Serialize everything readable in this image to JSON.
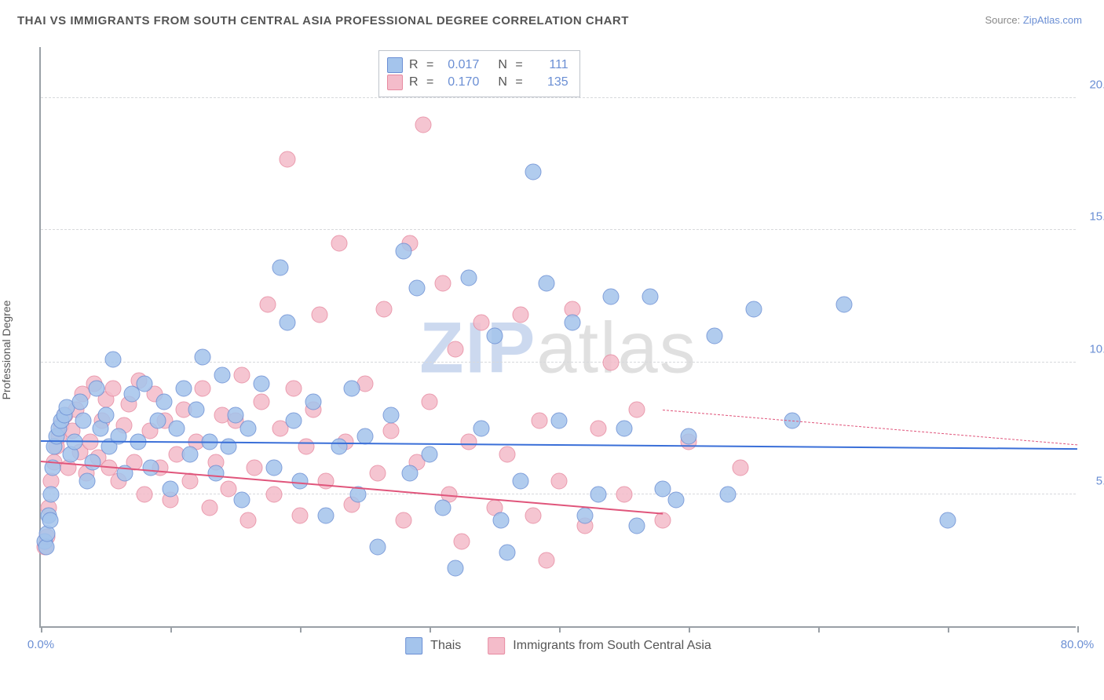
{
  "title": "THAI VS IMMIGRANTS FROM SOUTH CENTRAL ASIA PROFESSIONAL DEGREE CORRELATION CHART",
  "source_label": "Source: ",
  "source_value": "ZipAtlas.com",
  "ylabel": "Professional Degree",
  "watermark_prefix": "ZIP",
  "watermark_suffix": "atlas",
  "chart": {
    "type": "scatter",
    "background_color": "#ffffff",
    "axis_color": "#9aa0a6",
    "grid_color": "#d7d9dc",
    "tick_label_color": "#6b8fd4",
    "xlim": [
      0,
      80
    ],
    "ylim": [
      0,
      22
    ],
    "x_ticks": [
      0,
      10,
      20,
      30,
      40,
      50,
      60,
      70,
      80
    ],
    "x_tick_labels": {
      "0": "0.0%",
      "80": "80.0%"
    },
    "y_ticks": [
      5,
      10,
      15,
      20
    ],
    "y_tick_labels": {
      "5": "5.0%",
      "10": "10.0%",
      "15": "15.0%",
      "20": "20.0%"
    },
    "marker_radius": 10.5,
    "marker_border_width": 1.5,
    "marker_fill_opacity": 0.35,
    "title_fontsize": 15,
    "label_fontsize": 14
  },
  "series": [
    {
      "name": "Thais",
      "fill": "#a4c4ec",
      "stroke": "#6b8fd4",
      "R": "0.017",
      "N": "111",
      "trend": {
        "y_at_x0": 7.0,
        "y_at_x80": 7.3,
        "solid_until_x": 80,
        "color": "#3a6fd8"
      }
    },
    {
      "name": "Immigrants from South Central Asia",
      "fill": "#f4bcca",
      "stroke": "#e78aa0",
      "R": "0.170",
      "N": "135",
      "trend": {
        "y_at_x0": 6.2,
        "y_at_x80": 9.5,
        "solid_until_x": 48,
        "color": "#e0557b"
      }
    }
  ],
  "points_blue": [
    [
      0.3,
      3.2
    ],
    [
      0.4,
      3.0
    ],
    [
      0.5,
      3.5
    ],
    [
      0.6,
      4.2
    ],
    [
      0.7,
      4.0
    ],
    [
      0.8,
      5.0
    ],
    [
      0.9,
      6.0
    ],
    [
      1.0,
      6.8
    ],
    [
      1.2,
      7.2
    ],
    [
      1.4,
      7.5
    ],
    [
      1.6,
      7.8
    ],
    [
      1.8,
      8.0
    ],
    [
      2.0,
      8.3
    ],
    [
      2.3,
      6.5
    ],
    [
      2.6,
      7.0
    ],
    [
      3.0,
      8.5
    ],
    [
      3.3,
      7.8
    ],
    [
      3.6,
      5.5
    ],
    [
      4.0,
      6.2
    ],
    [
      4.3,
      9.0
    ],
    [
      4.6,
      7.5
    ],
    [
      5.0,
      8.0
    ],
    [
      5.3,
      6.8
    ],
    [
      5.6,
      10.1
    ],
    [
      6.0,
      7.2
    ],
    [
      6.5,
      5.8
    ],
    [
      7.0,
      8.8
    ],
    [
      7.5,
      7.0
    ],
    [
      8.0,
      9.2
    ],
    [
      8.5,
      6.0
    ],
    [
      9.0,
      7.8
    ],
    [
      9.5,
      8.5
    ],
    [
      10.0,
      5.2
    ],
    [
      10.5,
      7.5
    ],
    [
      11.0,
      9.0
    ],
    [
      11.5,
      6.5
    ],
    [
      12.0,
      8.2
    ],
    [
      12.5,
      10.2
    ],
    [
      13.0,
      7.0
    ],
    [
      13.5,
      5.8
    ],
    [
      14.0,
      9.5
    ],
    [
      14.5,
      6.8
    ],
    [
      15.0,
      8.0
    ],
    [
      15.5,
      4.8
    ],
    [
      16.0,
      7.5
    ],
    [
      17.0,
      9.2
    ],
    [
      18.0,
      6.0
    ],
    [
      18.5,
      13.6
    ],
    [
      19.0,
      11.5
    ],
    [
      19.5,
      7.8
    ],
    [
      20.0,
      5.5
    ],
    [
      21.0,
      8.5
    ],
    [
      22.0,
      4.2
    ],
    [
      23.0,
      6.8
    ],
    [
      24.0,
      9.0
    ],
    [
      24.5,
      5.0
    ],
    [
      25.0,
      7.2
    ],
    [
      26.0,
      3.0
    ],
    [
      27.0,
      8.0
    ],
    [
      28.0,
      14.2
    ],
    [
      28.5,
      5.8
    ],
    [
      29.0,
      12.8
    ],
    [
      30.0,
      6.5
    ],
    [
      31.0,
      4.5
    ],
    [
      32.0,
      2.2
    ],
    [
      33.0,
      13.2
    ],
    [
      34.0,
      7.5
    ],
    [
      35.0,
      11.0
    ],
    [
      35.5,
      4.0
    ],
    [
      36.0,
      2.8
    ],
    [
      37.0,
      5.5
    ],
    [
      38.0,
      17.2
    ],
    [
      39.0,
      13.0
    ],
    [
      40.0,
      7.8
    ],
    [
      41.0,
      11.5
    ],
    [
      42.0,
      4.2
    ],
    [
      43.0,
      5.0
    ],
    [
      44.0,
      12.5
    ],
    [
      45.0,
      7.5
    ],
    [
      46.0,
      3.8
    ],
    [
      47.0,
      12.5
    ],
    [
      48.0,
      5.2
    ],
    [
      49.0,
      4.8
    ],
    [
      50.0,
      7.2
    ],
    [
      52.0,
      11.0
    ],
    [
      53.0,
      5.0
    ],
    [
      55.0,
      12.0
    ],
    [
      58.0,
      7.8
    ],
    [
      62.0,
      12.2
    ],
    [
      70.0,
      4.0
    ]
  ],
  "points_pink": [
    [
      0.3,
      3.0
    ],
    [
      0.5,
      3.4
    ],
    [
      0.6,
      4.5
    ],
    [
      0.8,
      5.5
    ],
    [
      1.0,
      6.2
    ],
    [
      1.2,
      6.8
    ],
    [
      1.4,
      7.2
    ],
    [
      1.6,
      7.6
    ],
    [
      1.9,
      8.0
    ],
    [
      2.1,
      6.0
    ],
    [
      2.4,
      7.4
    ],
    [
      2.7,
      8.2
    ],
    [
      3.0,
      6.6
    ],
    [
      3.2,
      8.8
    ],
    [
      3.5,
      5.8
    ],
    [
      3.8,
      7.0
    ],
    [
      4.1,
      9.2
    ],
    [
      4.4,
      6.4
    ],
    [
      4.7,
      7.8
    ],
    [
      5.0,
      8.6
    ],
    [
      5.3,
      6.0
    ],
    [
      5.6,
      9.0
    ],
    [
      6.0,
      5.5
    ],
    [
      6.4,
      7.6
    ],
    [
      6.8,
      8.4
    ],
    [
      7.2,
      6.2
    ],
    [
      7.6,
      9.3
    ],
    [
      8.0,
      5.0
    ],
    [
      8.4,
      7.4
    ],
    [
      8.8,
      8.8
    ],
    [
      9.2,
      6.0
    ],
    [
      9.6,
      7.8
    ],
    [
      10.0,
      4.8
    ],
    [
      10.5,
      6.5
    ],
    [
      11.0,
      8.2
    ],
    [
      11.5,
      5.5
    ],
    [
      12.0,
      7.0
    ],
    [
      12.5,
      9.0
    ],
    [
      13.0,
      4.5
    ],
    [
      13.5,
      6.2
    ],
    [
      14.0,
      8.0
    ],
    [
      14.5,
      5.2
    ],
    [
      15.0,
      7.8
    ],
    [
      15.5,
      9.5
    ],
    [
      16.0,
      4.0
    ],
    [
      16.5,
      6.0
    ],
    [
      17.0,
      8.5
    ],
    [
      17.5,
      12.2
    ],
    [
      18.0,
      5.0
    ],
    [
      18.5,
      7.5
    ],
    [
      19.0,
      17.7
    ],
    [
      19.5,
      9.0
    ],
    [
      20.0,
      4.2
    ],
    [
      20.5,
      6.8
    ],
    [
      21.0,
      8.2
    ],
    [
      21.5,
      11.8
    ],
    [
      22.0,
      5.5
    ],
    [
      23.0,
      14.5
    ],
    [
      23.5,
      7.0
    ],
    [
      24.0,
      4.6
    ],
    [
      25.0,
      9.2
    ],
    [
      26.0,
      5.8
    ],
    [
      26.5,
      12.0
    ],
    [
      27.0,
      7.4
    ],
    [
      28.0,
      4.0
    ],
    [
      28.5,
      14.5
    ],
    [
      29.0,
      6.2
    ],
    [
      29.5,
      19.0
    ],
    [
      30.0,
      8.5
    ],
    [
      31.0,
      13.0
    ],
    [
      31.5,
      5.0
    ],
    [
      32.0,
      10.5
    ],
    [
      32.5,
      3.2
    ],
    [
      33.0,
      7.0
    ],
    [
      34.0,
      11.5
    ],
    [
      35.0,
      4.5
    ],
    [
      36.0,
      6.5
    ],
    [
      37.0,
      11.8
    ],
    [
      38.0,
      4.2
    ],
    [
      38.5,
      7.8
    ],
    [
      39.0,
      2.5
    ],
    [
      40.0,
      5.5
    ],
    [
      41.0,
      12.0
    ],
    [
      42.0,
      3.8
    ],
    [
      43.0,
      7.5
    ],
    [
      44.0,
      10.0
    ],
    [
      45.0,
      5.0
    ],
    [
      46.0,
      8.2
    ],
    [
      48.0,
      4.0
    ],
    [
      50.0,
      7.0
    ],
    [
      54.0,
      6.0
    ]
  ]
}
